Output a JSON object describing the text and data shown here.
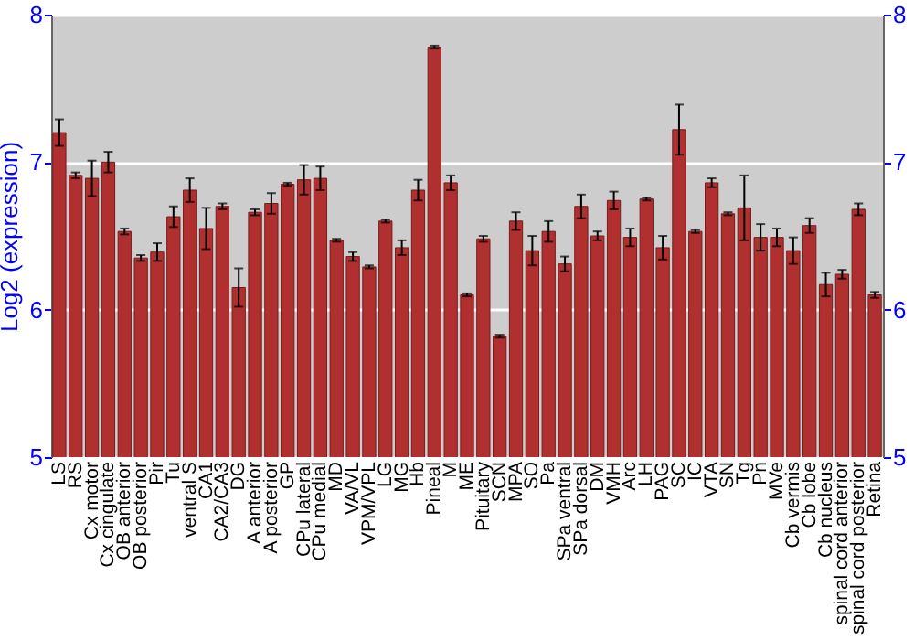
{
  "chart_data": {
    "type": "bar",
    "ylabel": "Log2 (expression)",
    "categories": [
      "LS",
      "RS",
      "Cx motor",
      "Cx cingulate",
      "OB anterior",
      "OB posterior",
      "Pir",
      "Tu",
      "ventral S",
      "CA1",
      "CA2/CA3",
      "DG",
      "A anterior",
      "A posterior",
      "GP",
      "CPu lateral",
      "CPu medial",
      "MD",
      "VA/VL",
      "VPM/VPL",
      "LG",
      "MG",
      "Hb",
      "Pineal",
      "M",
      "ME",
      "Pituitary",
      "SCN",
      "MPA",
      "SO",
      "Pa",
      "SPa ventral",
      "SPa dorsal",
      "DM",
      "VMH",
      "Arc",
      "LH",
      "PAG",
      "SC",
      "IC",
      "VTA",
      "SN",
      "Tg",
      "Pn",
      "MVe",
      "Cb vermis",
      "Cb lobe",
      "Cb nucleus",
      "spinal cord anterior",
      "spinal cord posterior",
      "Retina"
    ],
    "values": [
      7.2,
      6.91,
      6.89,
      7.0,
      6.53,
      6.35,
      6.39,
      6.63,
      6.81,
      6.55,
      6.7,
      6.15,
      6.66,
      6.72,
      6.85,
      6.88,
      6.89,
      6.47,
      6.36,
      6.29,
      6.6,
      6.42,
      6.81,
      7.78,
      6.86,
      6.1,
      6.48,
      5.82,
      6.6,
      6.4,
      6.53,
      6.31,
      6.7,
      6.5,
      6.74,
      6.49,
      6.75,
      6.42,
      7.22,
      6.53,
      6.86,
      6.65,
      6.69,
      6.49,
      6.49,
      6.4,
      6.57,
      6.17,
      6.24,
      6.68,
      6.1
    ],
    "errors": [
      0.09,
      0.02,
      0.12,
      0.07,
      0.02,
      0.02,
      0.06,
      0.07,
      0.08,
      0.14,
      0.02,
      0.13,
      0.02,
      0.07,
      0.01,
      0.1,
      0.08,
      0.01,
      0.03,
      0.01,
      0.01,
      0.05,
      0.07,
      0.01,
      0.05,
      0.01,
      0.02,
      0.01,
      0.06,
      0.1,
      0.07,
      0.05,
      0.08,
      0.03,
      0.06,
      0.06,
      0.01,
      0.08,
      0.17,
      0.01,
      0.03,
      0.01,
      0.22,
      0.09,
      0.06,
      0.09,
      0.05,
      0.08,
      0.03,
      0.04,
      0.02
    ],
    "color": "#b03030",
    "ylim": [
      5,
      8
    ],
    "yticks": [
      5,
      6,
      7,
      8
    ],
    "y2lim": [
      5,
      8
    ],
    "y2ticks": [
      5,
      6,
      7,
      8
    ],
    "grid": "y"
  }
}
